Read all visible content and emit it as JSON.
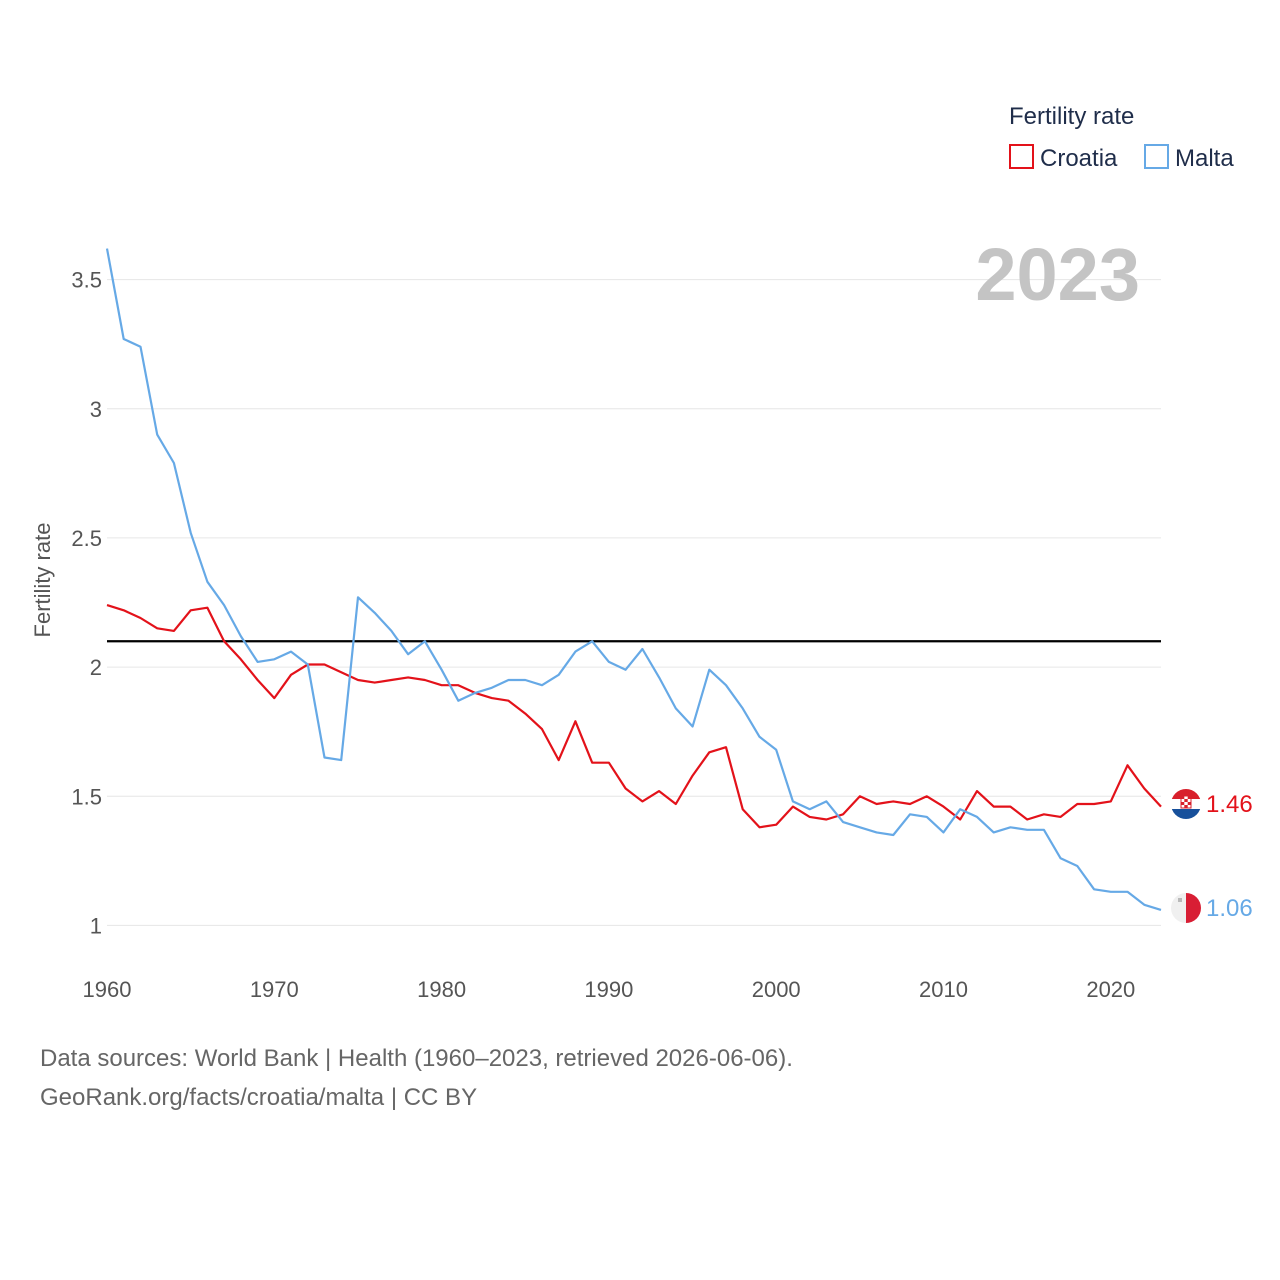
{
  "chart_data": {
    "type": "line",
    "year_label": "2023",
    "ylabel": "Fertility rate",
    "ylim": [
      0.87,
      3.63
    ],
    "xlim": [
      1960,
      2023
    ],
    "x_ticks": [
      1960,
      1970,
      1980,
      1990,
      2000,
      2010,
      2020
    ],
    "x_tick_labels": [
      "1960",
      "1970",
      "1980",
      "1990",
      "2000",
      "2010",
      "2020"
    ],
    "y_ticks": [
      1,
      1.5,
      2,
      2.5,
      3,
      3.5
    ],
    "y_tick_labels": [
      "1",
      "1.5",
      "2",
      "2.5",
      "3",
      "3.5"
    ],
    "reference_line": 2.1,
    "legend": {
      "title": "Fertility rate",
      "entries": [
        "Croatia",
        "Malta"
      ]
    },
    "x": [
      1960,
      1961,
      1962,
      1963,
      1964,
      1965,
      1966,
      1967,
      1968,
      1969,
      1970,
      1971,
      1972,
      1973,
      1974,
      1975,
      1976,
      1977,
      1978,
      1979,
      1980,
      1981,
      1982,
      1983,
      1984,
      1985,
      1986,
      1987,
      1988,
      1989,
      1990,
      1991,
      1992,
      1993,
      1994,
      1995,
      1996,
      1997,
      1998,
      1999,
      2000,
      2001,
      2002,
      2003,
      2004,
      2005,
      2006,
      2007,
      2008,
      2009,
      2010,
      2011,
      2012,
      2013,
      2014,
      2015,
      2016,
      2017,
      2018,
      2019,
      2020,
      2021,
      2022,
      2023
    ],
    "series": [
      {
        "name": "Croatia",
        "color": "#e3121a",
        "end_label": "1.46",
        "flag": "croatia-flag",
        "values": [
          2.24,
          2.22,
          2.19,
          2.15,
          2.14,
          2.22,
          2.23,
          2.1,
          2.03,
          1.95,
          1.88,
          1.97,
          2.01,
          2.01,
          1.98,
          1.95,
          1.94,
          1.95,
          1.96,
          1.95,
          1.93,
          1.93,
          1.9,
          1.88,
          1.87,
          1.82,
          1.76,
          1.64,
          1.79,
          1.63,
          1.63,
          1.53,
          1.48,
          1.52,
          1.47,
          1.58,
          1.67,
          1.69,
          1.45,
          1.38,
          1.39,
          1.46,
          1.42,
          1.41,
          1.43,
          1.5,
          1.47,
          1.48,
          1.47,
          1.5,
          1.46,
          1.41,
          1.52,
          1.46,
          1.46,
          1.41,
          1.43,
          1.42,
          1.47,
          1.47,
          1.48,
          1.62,
          1.53,
          1.46
        ]
      },
      {
        "name": "Malta",
        "color": "#66a9e6",
        "end_label": "1.06",
        "flag": "malta-flag",
        "values": [
          3.62,
          3.27,
          3.24,
          2.9,
          2.79,
          2.52,
          2.33,
          2.24,
          2.12,
          2.02,
          2.03,
          2.06,
          2.01,
          1.65,
          1.64,
          2.27,
          2.21,
          2.14,
          2.05,
          2.1,
          1.99,
          1.87,
          1.9,
          1.92,
          1.95,
          1.95,
          1.93,
          1.97,
          2.06,
          2.1,
          2.02,
          1.99,
          2.07,
          1.96,
          1.84,
          1.77,
          1.99,
          1.93,
          1.84,
          1.73,
          1.68,
          1.48,
          1.45,
          1.48,
          1.4,
          1.38,
          1.36,
          1.35,
          1.43,
          1.42,
          1.36,
          1.45,
          1.42,
          1.36,
          1.38,
          1.37,
          1.37,
          1.26,
          1.23,
          1.14,
          1.13,
          1.13,
          1.08,
          1.06
        ]
      }
    ]
  },
  "footer": {
    "sources": "Data sources: World Bank | Health (1960–2023, retrieved 2026-06-06).",
    "link": "GeoRank.org/facts/croatia/malta | CC BY"
  }
}
